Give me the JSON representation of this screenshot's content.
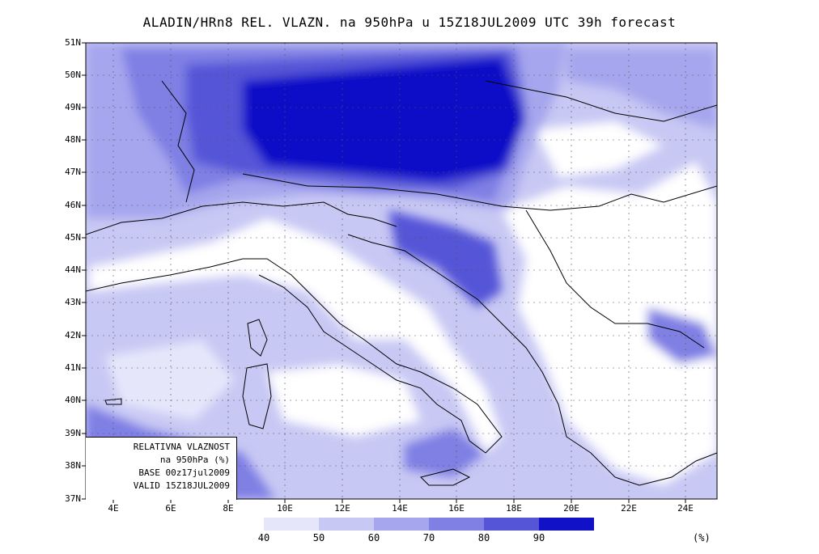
{
  "title": "ALADIN/HRn8 REL. VLAZN. na 950hPa u 15Z18JUL2009 UTC 39h forecast",
  "lat_labels": [
    "51N",
    "50N",
    "49N",
    "48N",
    "47N",
    "46N",
    "45N",
    "44N",
    "43N",
    "42N",
    "41N",
    "40N",
    "39N",
    "38N",
    "37N"
  ],
  "lon_labels": [
    "4E",
    "6E",
    "8E",
    "10E",
    "12E",
    "14E",
    "16E",
    "18E",
    "20E",
    "22E",
    "24E"
  ],
  "info_box": {
    "line1": "RELATIVNA VLAZNOST",
    "line2": "na 950hPa (%)",
    "line3": "BASE 00z17jul2009",
    "line4": "VALID 15Z18JUL2009"
  },
  "colorbar": {
    "labels": [
      "40",
      "50",
      "60",
      "70",
      "80",
      "90"
    ],
    "unit": "(%)",
    "colors": [
      "#e6e6fb",
      "#c8c8f4",
      "#a6a6ee",
      "#7f7fe4",
      "#5555d8",
      "#1111c8"
    ]
  },
  "colors": {
    "level_40": "#e6e6fb",
    "level_50": "#c8c8f4",
    "level_60": "#a6a6ee",
    "level_70": "#7f7fe4",
    "level_80": "#5555d8",
    "level_90": "#1111c8"
  }
}
